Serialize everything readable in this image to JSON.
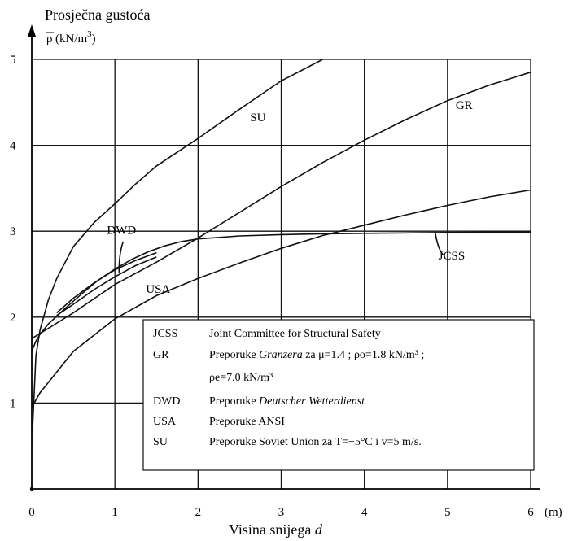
{
  "chart_data": {
    "type": "line",
    "title": "",
    "ylabel_line1": "Prosječna gustoća",
    "ylabel_symbol": "ρ",
    "ylabel_unit": "(kN/m",
    "ylabel_unit_exp": "3",
    "ylabel_unit_close": ")",
    "xlabel_prefix": "Visina snijega ",
    "xlabel_var": "d",
    "x_unit": "(m)",
    "xlim": [
      0,
      6
    ],
    "ylim": [
      0,
      5
    ],
    "x_ticks": [
      "0",
      "1",
      "2",
      "3",
      "4",
      "5",
      "6"
    ],
    "y_ticks": [
      "1",
      "2",
      "3",
      "4",
      "5"
    ],
    "grid": true,
    "series": [
      {
        "name": "SU",
        "x": [
          0,
          0.05,
          0.1,
          0.2,
          0.3,
          0.5,
          0.75,
          1.0,
          1.25,
          1.5,
          2.0,
          2.5,
          3.0,
          3.5
        ],
        "y": [
          0.5,
          1.55,
          1.85,
          2.2,
          2.45,
          2.82,
          3.1,
          3.32,
          3.55,
          3.76,
          4.08,
          4.42,
          4.75,
          5.0
        ]
      },
      {
        "name": "GR",
        "x": [
          0,
          0.25,
          0.5,
          1.0,
          1.5,
          2.0,
          2.5,
          3.0,
          3.5,
          4.0,
          4.5,
          5.0,
          5.5,
          6.0
        ],
        "y": [
          1.75,
          1.9,
          2.05,
          2.38,
          2.64,
          2.92,
          3.22,
          3.52,
          3.8,
          4.06,
          4.3,
          4.52,
          4.7,
          4.85
        ]
      },
      {
        "name": "JCSS",
        "x": [
          0,
          0.1,
          0.25,
          0.5,
          1.0,
          1.5,
          2.0,
          2.5,
          3.0,
          3.5,
          4.0,
          4.5,
          5.0,
          5.5,
          6.0
        ],
        "y": [
          0.95,
          1.12,
          1.3,
          1.6,
          1.98,
          2.25,
          2.45,
          2.63,
          2.8,
          2.95,
          3.07,
          3.19,
          3.3,
          3.4,
          3.48
        ]
      },
      {
        "name": "USA",
        "x": [
          0,
          0.05,
          0.1,
          0.2,
          0.4,
          0.6,
          0.8,
          1.0,
          1.2,
          1.4,
          1.6,
          1.8,
          2.0,
          2.5,
          3.0,
          3.5,
          4.0,
          4.5,
          5.0,
          5.5,
          6.0
        ],
        "y": [
          1.6,
          1.72,
          1.8,
          1.92,
          2.1,
          2.27,
          2.43,
          2.56,
          2.67,
          2.76,
          2.83,
          2.88,
          2.91,
          2.945,
          2.96,
          2.97,
          2.975,
          2.98,
          2.985,
          2.99,
          2.99
        ]
      },
      {
        "name": "DWD",
        "x": [
          0.3,
          0.5,
          0.75,
          1.0,
          1.25,
          1.5
        ],
        "y": [
          2.05,
          2.22,
          2.4,
          2.55,
          2.66,
          2.75
        ]
      },
      {
        "name": "",
        "x": [
          0.3,
          0.5,
          0.75,
          1.0,
          1.25,
          1.5
        ],
        "y": [
          2.02,
          2.15,
          2.32,
          2.47,
          2.6,
          2.7
        ]
      }
    ],
    "labels": [
      {
        "text": "SU",
        "x": 2.72,
        "y": 4.28
      },
      {
        "text": "GR",
        "x": 5.2,
        "y": 4.42
      },
      {
        "text": "DWD",
        "x": 1.08,
        "y": 2.97
      },
      {
        "text": "USA",
        "x": 1.52,
        "y": 2.28
      },
      {
        "text": "JCSS",
        "x": 5.05,
        "y": 2.67
      }
    ],
    "legend": {
      "placement": "bottom-right",
      "entries": [
        {
          "abbr": "JCSS",
          "desc": "Joint Committee for Structural Safety"
        },
        {
          "abbr": "GR",
          "desc_prefix": "Preporuke ",
          "desc_italic": "Granzera",
          "desc_suffix": " za μ=1.4 ; ρo=1.8 kN/m³ ;",
          "desc_line2": "ρe=7.0 kN/m³"
        },
        {
          "abbr": "DWD",
          "desc_prefix": "Preporuke ",
          "desc_italic": "Deutscher Wetterdienst",
          "desc_suffix": ""
        },
        {
          "abbr": "USA",
          "desc": "Preporuke ANSI"
        },
        {
          "abbr": "SU",
          "desc": "Preporuke Soviet Union za T=−5°C i v=5 m/s."
        }
      ]
    }
  }
}
